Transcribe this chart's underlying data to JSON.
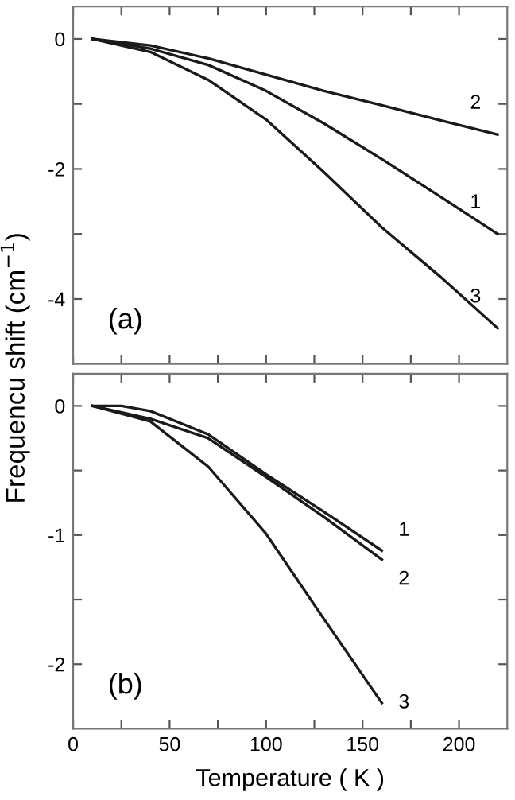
{
  "chart_data": [
    {
      "type": "line",
      "ylabel": "Frequencu shift (cm$^{−1}$)",
      "xlim": [
        0,
        225
      ],
      "ylim": [
        -5,
        0.5
      ],
      "xticks": [
        0,
        {
          "value": 25,
          "label": null
        },
        50,
        {
          "value": 75,
          "label": null
        },
        100,
        {
          "value": 125,
          "label": null
        },
        150,
        {
          "value": 175,
          "label": null
        },
        200
      ],
      "yticks": [
        0,
        {
          "value": -1,
          "label": null
        },
        -2,
        {
          "value": -3,
          "label": null
        },
        -4
      ],
      "tick_labels": "y",
      "grid": false,
      "legend": false,
      "marker": "none",
      "line_style": "solid",
      "series": [
        {
          "name": "1",
          "color": "#1a1a1a",
          "x": [
            10,
            40,
            70,
            100,
            130,
            160,
            190,
            220
          ],
          "values": [
            0,
            -0.15,
            -0.4,
            -0.8,
            -1.3,
            -1.85,
            -2.42,
            -3.0
          ]
        },
        {
          "name": "2",
          "color": "#1a1a1a",
          "x": [
            10,
            40,
            70,
            100,
            130,
            160,
            190,
            220
          ],
          "values": [
            0,
            -0.1,
            -0.3,
            -0.55,
            -0.8,
            -1.02,
            -1.25,
            -1.47
          ]
        },
        {
          "name": "3",
          "color": "#1a1a1a",
          "x": [
            10,
            40,
            70,
            100,
            130,
            160,
            190,
            220
          ],
          "values": [
            0,
            -0.2,
            -0.63,
            -1.24,
            -2.05,
            -2.9,
            -3.65,
            -4.45
          ]
        }
      ],
      "annotations": [
        "(a)"
      ]
    },
    {
      "type": "line",
      "xlabel": "Temperature ( K )",
      "xlim": [
        0,
        225
      ],
      "ylim": [
        -2.5,
        0.25
      ],
      "xticks": [
        0,
        {
          "value": 25,
          "label": null
        },
        50,
        {
          "value": 75,
          "label": null
        },
        100,
        {
          "value": 125,
          "label": null
        },
        150,
        {
          "value": 175,
          "label": null
        },
        200
      ],
      "yticks": [
        0,
        {
          "value": -0.5,
          "label": null
        },
        -1,
        {
          "value": -1.5,
          "label": null
        },
        -2
      ],
      "grid": false,
      "legend": false,
      "marker": "none",
      "line_style": "solid",
      "series": [
        {
          "name": "1",
          "color": "#1a1a1a",
          "x": [
            10,
            25,
            40,
            70,
            100,
            130,
            160
          ],
          "values": [
            0,
            0,
            -0.04,
            -0.22,
            -0.53,
            -0.82,
            -1.12
          ]
        },
        {
          "name": "2",
          "color": "#1a1a1a",
          "x": [
            10,
            40,
            70,
            100,
            130,
            160
          ],
          "values": [
            0,
            -0.1,
            -0.25,
            -0.55,
            -0.86,
            -1.19
          ]
        },
        {
          "name": "3",
          "color": "#1a1a1a",
          "x": [
            10,
            40,
            70,
            100,
            130,
            160
          ],
          "values": [
            0,
            -0.12,
            -0.47,
            -0.99,
            -1.65,
            -2.3
          ]
        }
      ],
      "annotations": [
        "(b)"
      ]
    }
  ]
}
